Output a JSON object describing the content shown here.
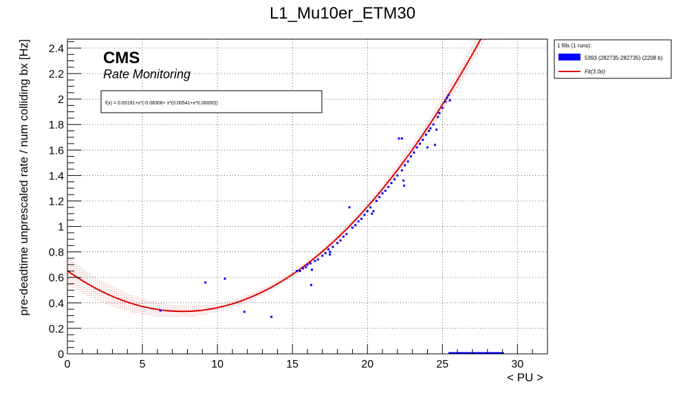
{
  "chart_data": {
    "type": "scatter",
    "title": "L1_Mu10er_ETM30",
    "xlabel": "< PU >",
    "ylabel": "pre-deadtime unprescaled rate / num colliding bx [Hz]",
    "xlim": [
      0,
      32
    ],
    "ylim": [
      0,
      2.47
    ],
    "x_ticks": [
      0,
      5,
      10,
      15,
      20,
      25,
      30
    ],
    "y_ticks": [
      0,
      0.2,
      0.4,
      0.6,
      0.8,
      1,
      1.2,
      1.4,
      1.6,
      1.8,
      2,
      2.2,
      2.4
    ],
    "x_tick_labels": [
      "0",
      "5",
      "10",
      "15",
      "20",
      "25",
      "30"
    ],
    "y_tick_labels": [
      "0",
      "0.2",
      "0.4",
      "0.6",
      "0.8",
      "1",
      "1.2",
      "1.4",
      "1.6",
      "1.8",
      "2",
      "2.2",
      "2.4"
    ],
    "grid": true,
    "legend_position": "top-right-outside",
    "header": "CMS",
    "subheader": "Rate Monitoring",
    "fit_formula": "f(x) = 0.65191+x*(-0.08306+ x*(0.00541+x*0.00000))",
    "fit": {
      "name": "Fit(3.0σ)",
      "coefficients": [
        0.65191,
        -0.08306,
        0.00541,
        0.0
      ],
      "x_range": [
        0,
        32
      ],
      "band_sigma": 3.0,
      "color": "#dd0000"
    },
    "legend_title": "1 fills (1 runs):",
    "series": [
      {
        "name": "5393 (282735-282735) (2208 b)",
        "color": "#0000ff",
        "points": [
          [
            6.2,
            0.34
          ],
          [
            9.2,
            0.56
          ],
          [
            10.5,
            0.59
          ],
          [
            11.8,
            0.33
          ],
          [
            13.6,
            0.29
          ],
          [
            15.3,
            0.65
          ],
          [
            15.5,
            0.65
          ],
          [
            15.7,
            0.67
          ],
          [
            15.9,
            0.68
          ],
          [
            16.0,
            0.7
          ],
          [
            16.2,
            0.71
          ],
          [
            16.3,
            0.66
          ],
          [
            16.25,
            0.54
          ],
          [
            16.5,
            0.73
          ],
          [
            16.7,
            0.74
          ],
          [
            17.0,
            0.77
          ],
          [
            17.2,
            0.79
          ],
          [
            17.4,
            0.82
          ],
          [
            17.5,
            0.78
          ],
          [
            17.5,
            0.8
          ],
          [
            17.7,
            0.84
          ],
          [
            18.0,
            0.87
          ],
          [
            18.2,
            0.89
          ],
          [
            18.4,
            0.92
          ],
          [
            18.6,
            0.94
          ],
          [
            18.8,
            1.15
          ],
          [
            19.0,
            0.99
          ],
          [
            19.2,
            1.01
          ],
          [
            19.4,
            1.04
          ],
          [
            19.6,
            1.06
          ],
          [
            19.8,
            1.09
          ],
          [
            20.0,
            1.12
          ],
          [
            20.2,
            1.15
          ],
          [
            20.3,
            1.1
          ],
          [
            20.4,
            1.12
          ],
          [
            20.6,
            1.2
          ],
          [
            20.8,
            1.23
          ],
          [
            21.0,
            1.26
          ],
          [
            21.2,
            1.28
          ],
          [
            21.4,
            1.31
          ],
          [
            21.6,
            1.34
          ],
          [
            21.8,
            1.37
          ],
          [
            22.0,
            1.4
          ],
          [
            22.1,
            1.69
          ],
          [
            22.3,
            1.69
          ],
          [
            22.3,
            1.44
          ],
          [
            22.4,
            1.36
          ],
          [
            22.45,
            1.32
          ],
          [
            22.5,
            1.48
          ],
          [
            22.7,
            1.51
          ],
          [
            22.9,
            1.55
          ],
          [
            23.1,
            1.58
          ],
          [
            23.3,
            1.62
          ],
          [
            23.5,
            1.65
          ],
          [
            23.7,
            1.68
          ],
          [
            23.9,
            1.72
          ],
          [
            24.0,
            1.62
          ],
          [
            24.1,
            1.75
          ],
          [
            24.2,
            1.77
          ],
          [
            24.4,
            1.8
          ],
          [
            24.5,
            1.64
          ],
          [
            24.6,
            1.76
          ],
          [
            24.7,
            1.86
          ],
          [
            24.8,
            1.89
          ],
          [
            25.0,
            1.93
          ],
          [
            25.2,
            1.98
          ],
          [
            25.3,
            2.01
          ],
          [
            25.4,
            2.03
          ],
          [
            25.5,
            1.99
          ]
        ],
        "baseline_segment": {
          "x_from": 25.4,
          "x_to": 29.1,
          "y": 0
        }
      }
    ]
  }
}
